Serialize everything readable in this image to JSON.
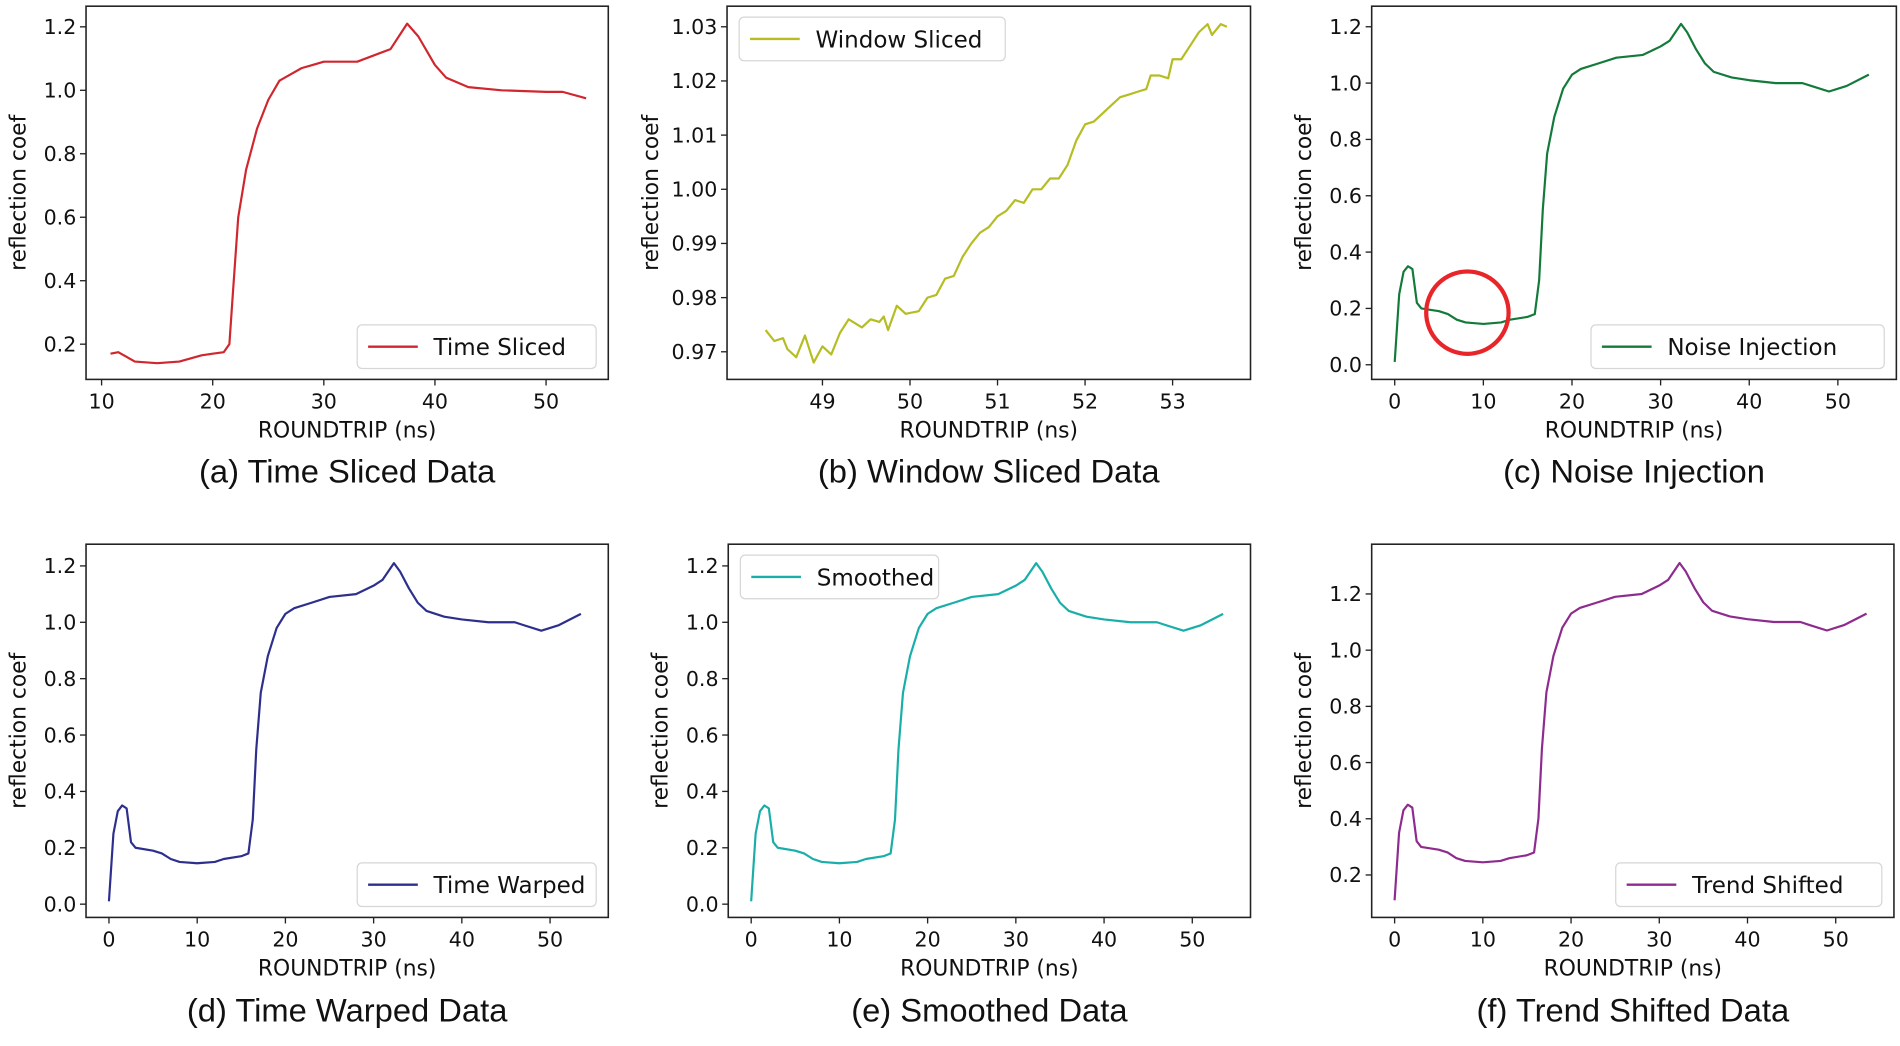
{
  "chart_data": [
    {
      "type": "line",
      "caption": "(a) Time Sliced Data",
      "xlabel": "ROUNDTRIP (ns)",
      "ylabel": "reflection coef",
      "xlim": [
        8.6,
        55.6
      ],
      "ylim": [
        0.089,
        1.265
      ],
      "xticks": [
        "10",
        "20",
        "30",
        "40",
        "50"
      ],
      "yticks": [
        "0.2",
        "0.4",
        "0.6",
        "0.8",
        "1.0",
        "1.2"
      ],
      "legend": "lower-right",
      "grid": false,
      "series": [
        {
          "name": "Time Sliced",
          "color": "#d0262d",
          "x": [
            10.8,
            11.5,
            12,
            13,
            15,
            17,
            18,
            19,
            20,
            21,
            21.5,
            21.8,
            22.3,
            23,
            24,
            25,
            26,
            27,
            28,
            29,
            30,
            33,
            36,
            37.5,
            38.5,
            40,
            41,
            43,
            46,
            50,
            51.5,
            53.6
          ],
          "y": [
            0.17,
            0.175,
            0.165,
            0.145,
            0.14,
            0.145,
            0.155,
            0.165,
            0.17,
            0.175,
            0.2,
            0.35,
            0.6,
            0.75,
            0.88,
            0.97,
            1.03,
            1.05,
            1.07,
            1.08,
            1.09,
            1.09,
            1.13,
            1.21,
            1.17,
            1.08,
            1.04,
            1.01,
            1.0,
            0.995,
            0.995,
            0.975
          ]
        }
      ]
    },
    {
      "type": "line",
      "caption": "(b) Window Sliced Data",
      "xlabel": "ROUNDTRIP (ns)",
      "ylabel": "reflection coef",
      "xlim": [
        47.91,
        53.89
      ],
      "ylim": [
        0.9649,
        1.0338
      ],
      "xticks": [
        "49",
        "50",
        "51",
        "52",
        "53"
      ],
      "yticks": [
        "0.97",
        "0.98",
        "0.99",
        "1.00",
        "1.01",
        "1.02",
        "1.03"
      ],
      "legend": "upper-left",
      "grid": false,
      "series": [
        {
          "name": "Window Sliced",
          "color": "#b5bd22",
          "x": [
            48.35,
            48.45,
            48.55,
            48.6,
            48.7,
            48.8,
            48.9,
            49.0,
            49.1,
            49.2,
            49.3,
            49.45,
            49.55,
            49.65,
            49.7,
            49.75,
            49.85,
            49.95,
            50.1,
            50.2,
            50.3,
            50.4,
            50.5,
            50.6,
            50.7,
            50.8,
            50.9,
            51.0,
            51.1,
            51.2,
            51.3,
            51.4,
            51.5,
            51.6,
            51.7,
            51.8,
            51.9,
            52.0,
            52.1,
            52.2,
            52.3,
            52.4,
            52.5,
            52.6,
            52.7,
            52.75,
            52.85,
            52.95,
            53.0,
            53.1,
            53.2,
            53.3,
            53.4,
            53.45,
            53.55,
            53.62
          ],
          "y": [
            0.974,
            0.972,
            0.9725,
            0.9705,
            0.969,
            0.973,
            0.968,
            0.971,
            0.9695,
            0.9735,
            0.976,
            0.9745,
            0.976,
            0.9755,
            0.9765,
            0.974,
            0.9785,
            0.977,
            0.9775,
            0.98,
            0.9805,
            0.9835,
            0.984,
            0.9875,
            0.99,
            0.992,
            0.993,
            0.995,
            0.996,
            0.998,
            0.9975,
            1.0,
            1.0,
            1.002,
            1.002,
            1.0045,
            1.009,
            1.012,
            1.0125,
            1.014,
            1.0155,
            1.017,
            1.0175,
            1.018,
            1.0185,
            1.021,
            1.021,
            1.0205,
            1.024,
            1.024,
            1.0265,
            1.029,
            1.0305,
            1.0285,
            1.0305,
            1.03
          ]
        }
      ]
    },
    {
      "type": "line",
      "caption": "(c) Noise Injection",
      "xlabel": "ROUNDTRIP (ns)",
      "ylabel": "reflection coef",
      "xlim": [
        -2.6,
        56.6
      ],
      "ylim": [
        -0.052,
        1.273
      ],
      "xticks": [
        "0",
        "10",
        "20",
        "30",
        "40",
        "50"
      ],
      "yticks": [
        "0.0",
        "0.2",
        "0.4",
        "0.6",
        "0.8",
        "1.0",
        "1.2"
      ],
      "legend": "lower-right",
      "grid": false,
      "annotation": {
        "shape": "circle",
        "color": "#e8262a",
        "center": [
          8.2,
          0.185
        ]
      },
      "series": [
        {
          "name": "Noise Injection",
          "color": "#137a3a",
          "x": [
            0,
            0.5,
            1,
            1.5,
            2,
            2.5,
            3,
            5,
            6,
            7,
            8,
            10,
            12,
            13,
            15,
            15.8,
            16.3,
            16.7,
            17.2,
            18,
            19,
            20,
            21,
            23,
            25,
            28,
            30,
            31,
            32.3,
            33,
            34,
            35,
            36,
            38,
            40,
            43,
            46,
            47,
            49,
            51,
            53.5
          ],
          "y": [
            0.01,
            0.25,
            0.33,
            0.35,
            0.34,
            0.22,
            0.2,
            0.19,
            0.18,
            0.16,
            0.15,
            0.145,
            0.15,
            0.16,
            0.17,
            0.18,
            0.3,
            0.55,
            0.75,
            0.88,
            0.98,
            1.03,
            1.05,
            1.07,
            1.09,
            1.1,
            1.13,
            1.15,
            1.21,
            1.18,
            1.12,
            1.07,
            1.04,
            1.02,
            1.01,
            1.0,
            1.0,
            0.99,
            0.97,
            0.99,
            1.03
          ]
        }
      ]
    },
    {
      "type": "line",
      "caption": "(d) Time Warped Data",
      "xlabel": "ROUNDTRIP (ns)",
      "ylabel": "reflection coef",
      "xlim": [
        -2.6,
        56.6
      ],
      "ylim": [
        -0.047,
        1.277
      ],
      "xticks": [
        "0",
        "10",
        "20",
        "30",
        "40",
        "50"
      ],
      "yticks": [
        "0.0",
        "0.2",
        "0.4",
        "0.6",
        "0.8",
        "1.0",
        "1.2"
      ],
      "legend": "lower-right",
      "grid": false,
      "series": [
        {
          "name": "Time Warped",
          "color": "#2d2f8c",
          "x": [
            0,
            0.5,
            1,
            1.5,
            2,
            2.5,
            3,
            5,
            6,
            7,
            8,
            10,
            12,
            13,
            15,
            15.8,
            16.3,
            16.7,
            17.2,
            18,
            19,
            20,
            21,
            23,
            25,
            28,
            30,
            31,
            32.3,
            33,
            34,
            35,
            36,
            38,
            40,
            43,
            46,
            47,
            49,
            51,
            53.5
          ],
          "y": [
            0.01,
            0.25,
            0.33,
            0.35,
            0.34,
            0.22,
            0.2,
            0.19,
            0.18,
            0.16,
            0.15,
            0.145,
            0.15,
            0.16,
            0.17,
            0.18,
            0.3,
            0.55,
            0.75,
            0.88,
            0.98,
            1.03,
            1.05,
            1.07,
            1.09,
            1.1,
            1.13,
            1.15,
            1.21,
            1.18,
            1.12,
            1.07,
            1.04,
            1.02,
            1.01,
            1.0,
            1.0,
            0.99,
            0.97,
            0.99,
            1.03
          ]
        }
      ]
    },
    {
      "type": "line",
      "caption": "(e) Smoothed Data",
      "xlabel": "ROUNDTRIP (ns)",
      "ylabel": "reflection coef",
      "xlim": [
        -2.6,
        56.6
      ],
      "ylim": [
        -0.047,
        1.277
      ],
      "xticks": [
        "0",
        "10",
        "20",
        "30",
        "40",
        "50"
      ],
      "yticks": [
        "0.0",
        "0.2",
        "0.4",
        "0.6",
        "0.8",
        "1.0",
        "1.2"
      ],
      "legend": "upper-left",
      "grid": false,
      "series": [
        {
          "name": "Smoothed",
          "color": "#19aea8",
          "x": [
            0,
            0.5,
            1,
            1.5,
            2,
            2.5,
            3,
            5,
            6,
            7,
            8,
            10,
            12,
            13,
            15,
            15.8,
            16.3,
            16.7,
            17.2,
            18,
            19,
            20,
            21,
            23,
            25,
            28,
            30,
            31,
            32.3,
            33,
            34,
            35,
            36,
            38,
            40,
            43,
            46,
            47,
            49,
            51,
            53.5
          ],
          "y": [
            0.01,
            0.25,
            0.33,
            0.35,
            0.34,
            0.22,
            0.2,
            0.19,
            0.18,
            0.16,
            0.15,
            0.145,
            0.15,
            0.16,
            0.17,
            0.18,
            0.3,
            0.55,
            0.75,
            0.88,
            0.98,
            1.03,
            1.05,
            1.07,
            1.09,
            1.1,
            1.13,
            1.15,
            1.21,
            1.18,
            1.12,
            1.07,
            1.04,
            1.02,
            1.01,
            1.0,
            1.0,
            0.99,
            0.97,
            0.99,
            1.03
          ]
        }
      ]
    },
    {
      "type": "line",
      "caption": "(f) Trend Shifted Data",
      "xlabel": "ROUNDTRIP (ns)",
      "ylabel": "reflection coef",
      "xlim": [
        -2.6,
        56.6
      ],
      "ylim": [
        0.049,
        1.377
      ],
      "xticks": [
        "0",
        "10",
        "20",
        "30",
        "40",
        "50"
      ],
      "yticks": [
        "0.2",
        "0.4",
        "0.6",
        "0.8",
        "1.0",
        "1.2"
      ],
      "legend": "lower-right",
      "grid": false,
      "series": [
        {
          "name": "Trend Shifted",
          "color": "#8e2b8e",
          "x": [
            0,
            0.5,
            1,
            1.5,
            2,
            2.5,
            3,
            5,
            6,
            7,
            8,
            10,
            12,
            13,
            15,
            15.8,
            16.3,
            16.7,
            17.2,
            18,
            19,
            20,
            21,
            23,
            25,
            28,
            30,
            31,
            32.3,
            33,
            34,
            35,
            36,
            38,
            40,
            43,
            46,
            47,
            49,
            51,
            53.5
          ],
          "y": [
            0.11,
            0.35,
            0.43,
            0.45,
            0.44,
            0.32,
            0.3,
            0.29,
            0.28,
            0.26,
            0.25,
            0.245,
            0.25,
            0.26,
            0.27,
            0.28,
            0.4,
            0.65,
            0.85,
            0.98,
            1.08,
            1.13,
            1.15,
            1.17,
            1.19,
            1.2,
            1.23,
            1.25,
            1.31,
            1.28,
            1.22,
            1.17,
            1.14,
            1.12,
            1.11,
            1.1,
            1.1,
            1.09,
            1.07,
            1.09,
            1.13
          ]
        }
      ]
    }
  ]
}
